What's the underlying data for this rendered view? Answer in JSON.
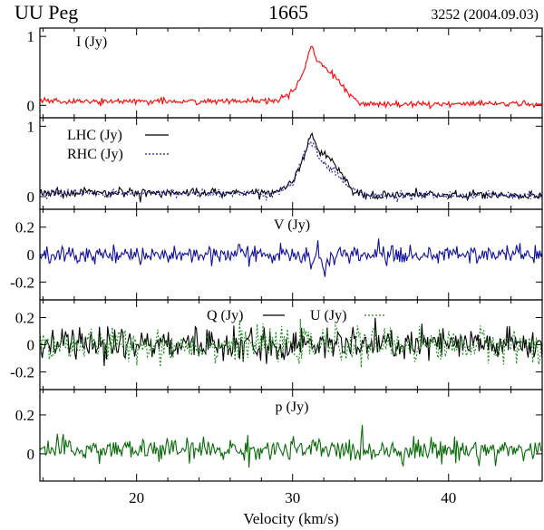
{
  "chart_data": {
    "type": "line",
    "title_left": "UU Peg",
    "title_center": "1665",
    "title_right": "3252 (2004.09.03)",
    "xlabel": "Velocity (km/s)",
    "xlim": [
      13.8,
      46.0
    ],
    "xticks": [
      20,
      30,
      40
    ],
    "xtick_labels": [
      "20",
      "30",
      "40"
    ],
    "noise_seed": 7,
    "panels": [
      {
        "id": "I",
        "label": "I (Jy)",
        "ylim": [
          -0.18,
          1.12
        ],
        "yticks": [
          0,
          1
        ],
        "ytick_labels": [
          "0",
          "1"
        ],
        "series": [
          {
            "name": "I",
            "color": "#ff0000",
            "dash": "",
            "noise": 0.022,
            "profile": [
              {
                "x": 29.2,
                "y": 0.06
              },
              {
                "x": 30.2,
                "y": 0.25
              },
              {
                "x": 30.8,
                "y": 0.55
              },
              {
                "x": 31.2,
                "y": 0.88
              },
              {
                "x": 31.6,
                "y": 0.62
              },
              {
                "x": 32.3,
                "y": 0.5
              },
              {
                "x": 33.0,
                "y": 0.34
              },
              {
                "x": 33.8,
                "y": 0.12
              },
              {
                "x": 34.6,
                "y": 0.02
              }
            ]
          }
        ]
      },
      {
        "id": "LR",
        "label": "",
        "ylim": [
          -0.18,
          1.12
        ],
        "yticks": [
          0,
          1
        ],
        "ytick_labels": [
          "0",
          "1"
        ],
        "legend": [
          {
            "label": "LHC (Jy)",
            "color": "#000000",
            "dash": ""
          },
          {
            "label": "RHC (Jy)",
            "color": "#1a1aa0",
            "dash": "2,2"
          }
        ],
        "series": [
          {
            "name": "LHC (Jy)",
            "color": "#000000",
            "dash": "",
            "noise": 0.03,
            "profile": [
              {
                "x": 29.0,
                "y": 0.06
              },
              {
                "x": 30.0,
                "y": 0.22
              },
              {
                "x": 30.7,
                "y": 0.52
              },
              {
                "x": 31.2,
                "y": 0.9
              },
              {
                "x": 31.7,
                "y": 0.62
              },
              {
                "x": 32.4,
                "y": 0.56
              },
              {
                "x": 33.1,
                "y": 0.32
              },
              {
                "x": 33.8,
                "y": 0.1
              },
              {
                "x": 34.6,
                "y": 0.02
              }
            ]
          },
          {
            "name": "RHC (Jy)",
            "color": "#1a1aa0",
            "dash": "2,2",
            "noise": 0.03,
            "profile": [
              {
                "x": 29.0,
                "y": 0.05
              },
              {
                "x": 30.0,
                "y": 0.2
              },
              {
                "x": 30.7,
                "y": 0.6
              },
              {
                "x": 31.2,
                "y": 0.8
              },
              {
                "x": 31.7,
                "y": 0.54
              },
              {
                "x": 32.4,
                "y": 0.4
              },
              {
                "x": 33.1,
                "y": 0.26
              },
              {
                "x": 33.8,
                "y": 0.08
              },
              {
                "x": 34.6,
                "y": 0.02
              }
            ]
          }
        ]
      },
      {
        "id": "V",
        "label": "V (Jy)",
        "ylim": [
          -0.33,
          0.33
        ],
        "yticks": [
          0.2,
          0,
          -0.2
        ],
        "ytick_labels": [
          "0.2",
          "0",
          "-0.2"
        ],
        "series": [
          {
            "name": "V",
            "color": "#10109a",
            "dash": "",
            "noise": 0.032,
            "profile": [
              {
                "x": 30.6,
                "y": 0.0
              },
              {
                "x": 31.0,
                "y": 0.05
              },
              {
                "x": 31.2,
                "y": -0.1
              },
              {
                "x": 31.6,
                "y": 0.04
              },
              {
                "x": 32.0,
                "y": -0.12
              },
              {
                "x": 32.5,
                "y": -0.03
              },
              {
                "x": 33.0,
                "y": 0.0
              }
            ]
          }
        ]
      },
      {
        "id": "QU",
        "label": "",
        "ylim": [
          -0.33,
          0.33
        ],
        "yticks": [
          0.2,
          0,
          -0.2
        ],
        "ytick_labels": [
          "0.2",
          "0",
          "-0.2"
        ],
        "legend_inline": [
          {
            "label": "Q (Jy)",
            "color": "#000000",
            "dash": ""
          },
          {
            "label": "U (Jy)",
            "color": "#1a8a1a",
            "dash": "2,2"
          }
        ],
        "series": [
          {
            "name": "Q (Jy)",
            "color": "#000000",
            "dash": "",
            "noise": 0.06,
            "profile": [
              {
                "x": 14,
                "y": 0.0
              },
              {
                "x": 46,
                "y": 0.0
              }
            ]
          },
          {
            "name": "U (Jy)",
            "color": "#1a8a1a",
            "dash": "2,2",
            "noise": 0.06,
            "profile": [
              {
                "x": 14,
                "y": 0.0
              },
              {
                "x": 46,
                "y": 0.0
              }
            ]
          }
        ]
      },
      {
        "id": "p",
        "label": "p (Jy)",
        "ylim": [
          -0.14,
          0.33
        ],
        "yticks": [
          0.2,
          0
        ],
        "ytick_labels": [
          "0.2",
          "0"
        ],
        "series": [
          {
            "name": "p",
            "color": "#0a6a0a",
            "dash": "",
            "noise": 0.03,
            "offset": 0.02,
            "profile": [
              {
                "x": 14,
                "y": 0.0
              },
              {
                "x": 46,
                "y": 0.0
              }
            ]
          }
        ]
      }
    ]
  }
}
